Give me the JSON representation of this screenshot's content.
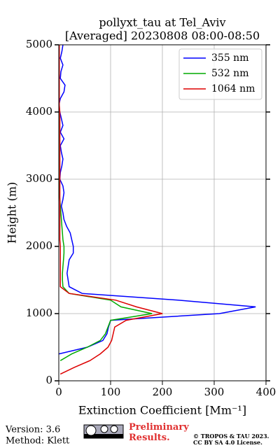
{
  "chart_data": {
    "type": "line",
    "title": "pollyxt_tau at Tel_Aviv",
    "subtitle": "[Averaged] 20230808 08:00-08:50",
    "xlabel": "Extinction Coefficient [Mm⁻¹]",
    "ylabel": "Height (m)",
    "xlim": [
      0,
      400
    ],
    "xticks": [
      0,
      100,
      200,
      300,
      400
    ],
    "ylim": [
      0,
      5000
    ],
    "yticks": [
      0,
      1000,
      2000,
      3000,
      4000,
      5000
    ],
    "grid": true,
    "legend": "upper right",
    "y": [
      0,
      100,
      200,
      300,
      400,
      500,
      600,
      700,
      800,
      900,
      1000,
      1100,
      1200,
      1300,
      1400,
      1500,
      1600,
      1700,
      1800,
      1900,
      2000,
      2100,
      2200,
      2300,
      2400,
      2500,
      2600,
      2700,
      2800,
      2900,
      3000,
      3100,
      3200,
      3300,
      3400,
      3500,
      3600,
      3700,
      3800,
      3900,
      4000,
      4100,
      4200,
      4300,
      4400,
      4500,
      4600,
      4700,
      4800,
      4900,
      5000
    ],
    "series": [
      {
        "name": "355 nm",
        "color": "#0000ff",
        "values": [
          null,
          null,
          null,
          null,
          0,
          55,
          85,
          93,
          96,
          100,
          310,
          380,
          230,
          45,
          20,
          18,
          16,
          18,
          20,
          28,
          28,
          25,
          22,
          15,
          10,
          8,
          5,
          8,
          10,
          8,
          2,
          3,
          6,
          8,
          5,
          3,
          10,
          3,
          8,
          5,
          2,
          0,
          3,
          10,
          12,
          3,
          4,
          8,
          3,
          6,
          8
        ]
      },
      {
        "name": "532 nm",
        "color": "#00aa00",
        "values": [
          null,
          null,
          null,
          3,
          25,
          55,
          80,
          90,
          95,
          100,
          180,
          120,
          100,
          20,
          8,
          7,
          7,
          8,
          9,
          10,
          10,
          8,
          7,
          6,
          5,
          4,
          3,
          2,
          1,
          1,
          0,
          0,
          0,
          0,
          0,
          0,
          0,
          0,
          0,
          0,
          0,
          0,
          0,
          0,
          0,
          0,
          0,
          0,
          0,
          0,
          0
        ]
      },
      {
        "name": "1064 nm",
        "color": "#dd0000",
        "values": [
          null,
          3,
          30,
          60,
          80,
          95,
          102,
          105,
          108,
          130,
          200,
          150,
          110,
          20,
          3,
          3,
          3,
          3,
          3,
          3,
          3,
          2,
          2,
          2,
          2,
          2,
          2,
          2,
          2,
          2,
          2,
          2,
          2,
          2,
          2,
          2,
          2,
          2,
          2,
          2,
          2,
          1,
          1,
          1,
          1,
          1,
          1,
          1,
          1,
          1,
          1
        ]
      }
    ],
    "footer": {
      "version": "Version: 3.6",
      "method": "Method: Klett",
      "preliminary": "Preliminary Results.",
      "copyright": "© TROPOS & TAU 2023.",
      "license": "CC BY SA 4.0 License."
    }
  }
}
